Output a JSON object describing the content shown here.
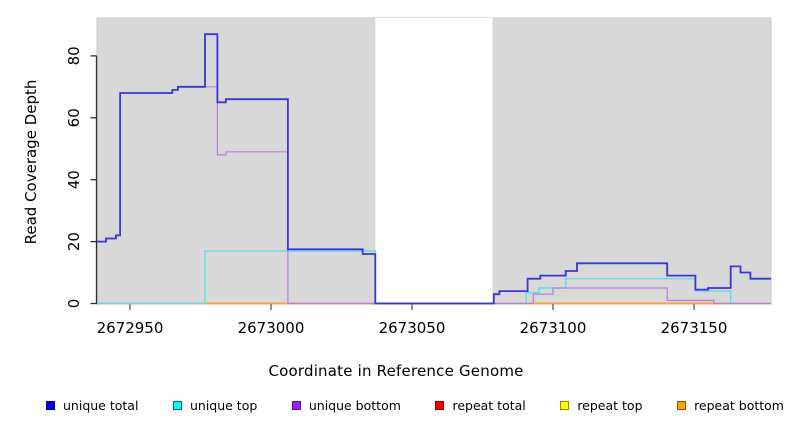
{
  "chart_data": {
    "type": "line",
    "subtype": "step-coverage",
    "title": "",
    "xlabel": "Coordinate in Reference Genome",
    "ylabel": "Read Coverage Depth",
    "xlim": [
      2672938.3,
      2673177.3
    ],
    "ylim": [
      0,
      92.4
    ],
    "x_ticks": [
      2672950,
      2673000,
      2673050,
      2673100,
      2673150
    ],
    "y_ticks": [
      0,
      20,
      40,
      60,
      80
    ],
    "grid": false,
    "plot_bg_color": "#d9d9d9",
    "plot_bg_edge_color": "#c9c9c9",
    "gap_region": {
      "x_start": 2673037,
      "x_end": 2673078.5,
      "color": "#ffffff"
    },
    "axis_color": "#2b2b2b",
    "series": [
      {
        "name": "repeat top",
        "line_color": "#f0e32a",
        "line_width": 1.2,
        "points": [
          [
            2672938.3,
            0
          ]
        ]
      },
      {
        "name": "repeat total",
        "line_color": "#e03131",
        "line_width": 1.2,
        "points": [
          [
            2672938.3,
            0
          ]
        ]
      },
      {
        "name": "repeat bottom",
        "line_color": "#ffa320",
        "line_width": 1.5,
        "points": [
          [
            2672938.3,
            0
          ]
        ]
      },
      {
        "name": "unique top",
        "line_color": "#5fe0e8",
        "line_width": 1.4,
        "points": [
          [
            2672938.3,
            0
          ],
          [
            2672976.6,
            17
          ],
          [
            2673037,
            0
          ],
          [
            2673090.5,
            3.5
          ],
          [
            2673095,
            5
          ],
          [
            2673104.5,
            8
          ],
          [
            2673150.5,
            4
          ],
          [
            2673163,
            0
          ]
        ]
      },
      {
        "name": "unique bottom",
        "line_color": "#bd7bdd",
        "line_width": 1.2,
        "points": [
          [
            2672938.3,
            20
          ],
          [
            2672941.5,
            21
          ],
          [
            2672945,
            22
          ],
          [
            2672946.5,
            68
          ],
          [
            2672965,
            69
          ],
          [
            2672967,
            70
          ],
          [
            2672981,
            48
          ],
          [
            2672984,
            49
          ],
          [
            2673006,
            0
          ],
          [
            2673093,
            3
          ],
          [
            2673100,
            5
          ],
          [
            2673140.5,
            1
          ],
          [
            2673157,
            0
          ]
        ]
      },
      {
        "name": "unique total",
        "line_color": "#3a35d9",
        "line_width": 1.8,
        "points": [
          [
            2672938.3,
            20
          ],
          [
            2672941.5,
            21
          ],
          [
            2672945,
            22
          ],
          [
            2672946.5,
            68
          ],
          [
            2672965,
            69
          ],
          [
            2672967,
            70
          ],
          [
            2672976.6,
            87
          ],
          [
            2672981,
            65
          ],
          [
            2672984,
            66
          ],
          [
            2673006,
            17.5
          ],
          [
            2673032.5,
            16
          ],
          [
            2673037,
            0
          ],
          [
            2673079,
            3
          ],
          [
            2673081,
            4
          ],
          [
            2673091,
            8
          ],
          [
            2673095.5,
            9
          ],
          [
            2673104.5,
            10.5
          ],
          [
            2673108.5,
            13
          ],
          [
            2673140.5,
            9
          ],
          [
            2673150.5,
            4.5
          ],
          [
            2673155,
            5
          ],
          [
            2673163,
            12
          ],
          [
            2673166.5,
            10
          ],
          [
            2673170,
            8
          ]
        ]
      }
    ]
  },
  "legend": {
    "items": [
      {
        "label": "unique total",
        "fill": "#0000ee",
        "border": "#000080"
      },
      {
        "label": "unique top",
        "fill": "#00ffff",
        "border": "#006666"
      },
      {
        "label": "unique bottom",
        "fill": "#a020f0",
        "border": "#551a8b"
      },
      {
        "label": "repeat total",
        "fill": "#ee0000",
        "border": "#8b0000"
      },
      {
        "label": "repeat top",
        "fill": "#ffff00",
        "border": "#8b8b00"
      },
      {
        "label": "repeat bottom",
        "fill": "#ffa500",
        "border": "#8b5a00"
      }
    ]
  }
}
